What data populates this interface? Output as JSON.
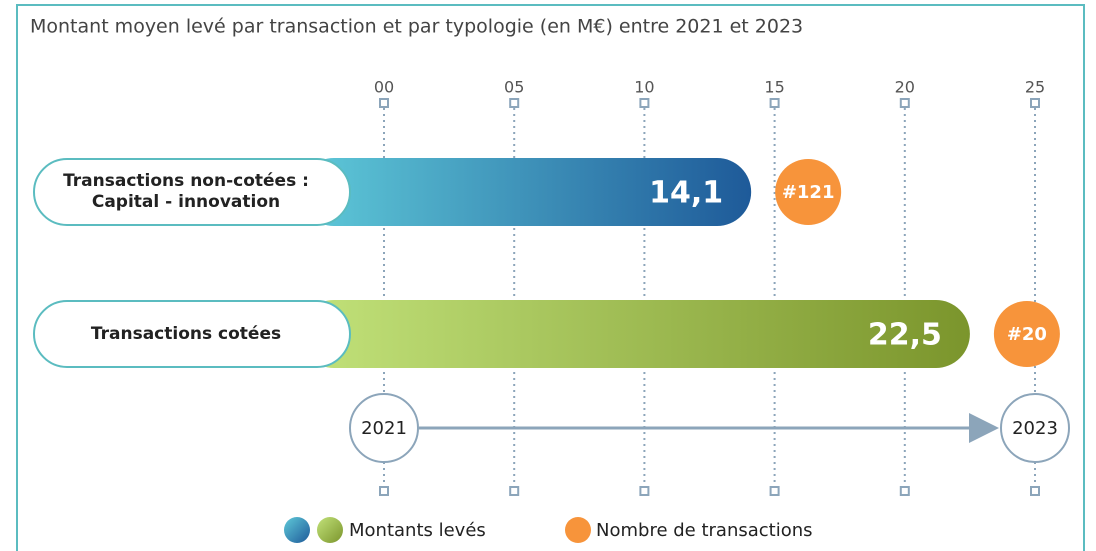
{
  "chart_data": {
    "type": "bar",
    "title": "Montant moyen levé par transaction et par typologie (en M€) entre 2021 et 2023",
    "categories": [
      "Transactions non-cotées :\nCapital - innovation",
      "Transactions cotées"
    ],
    "series": [
      {
        "name": "Montants levés",
        "colors": [
          [
            "#5fcad9",
            "#1e5a99"
          ],
          [
            "#c2e27a",
            "#7b952c"
          ]
        ],
        "values": [
          14.1,
          22.5
        ],
        "value_labels": [
          "14,1",
          "22,5"
        ]
      },
      {
        "name": "Nombre de transactions",
        "color": "#f7943b",
        "values": [
          121,
          20
        ],
        "value_labels": [
          "#121",
          "#20"
        ]
      }
    ],
    "xlim": [
      0,
      25
    ],
    "xticks": [
      {
        "value": 0,
        "label": "00"
      },
      {
        "value": 5,
        "label": "05"
      },
      10,
      15,
      20,
      25
    ],
    "period": [
      "2021",
      "2023"
    ]
  }
}
